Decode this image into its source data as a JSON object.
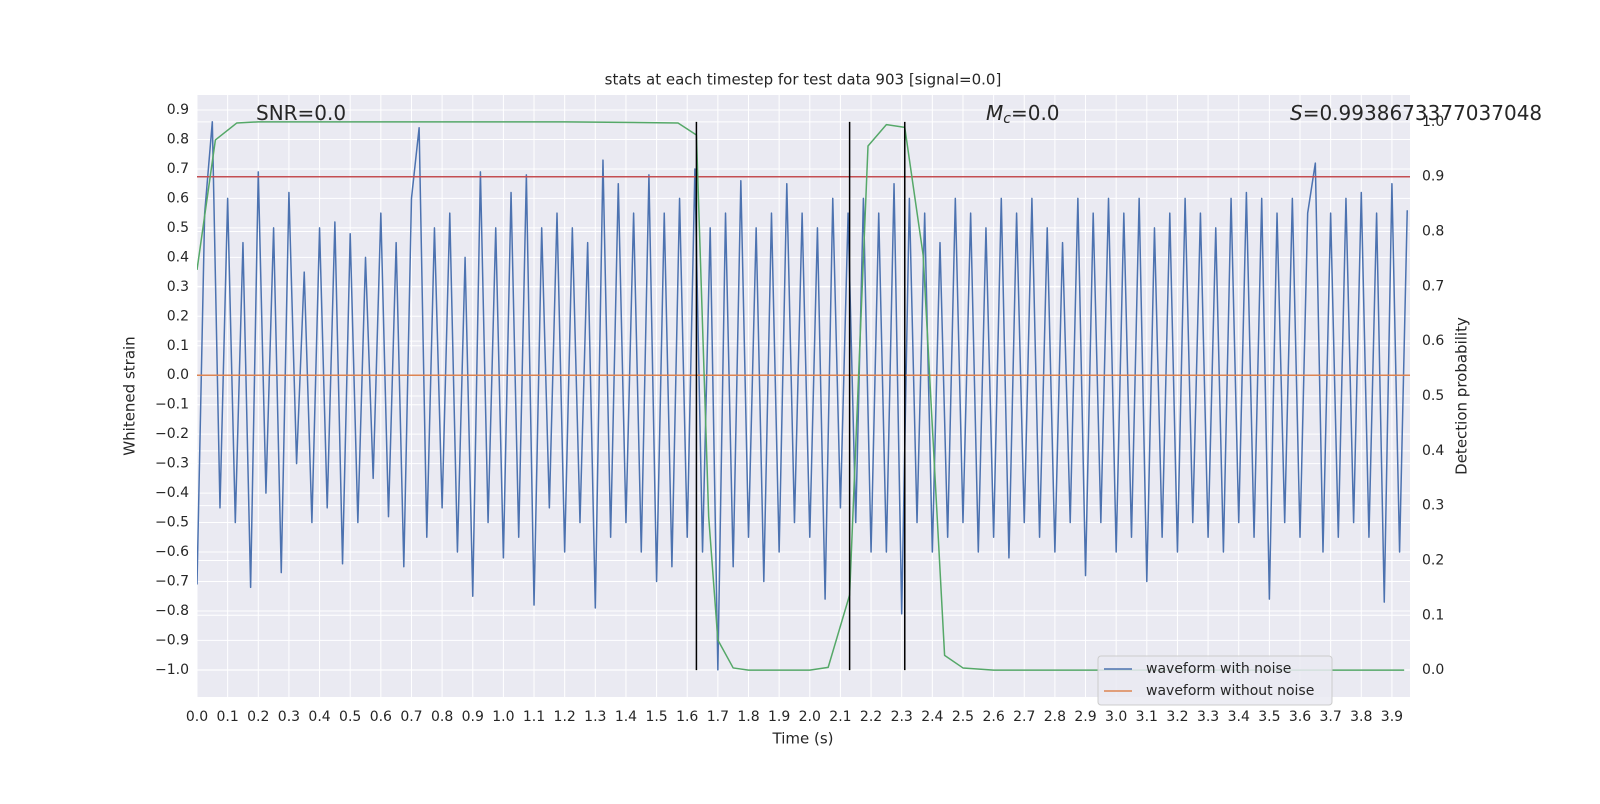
{
  "chart_data": {
    "type": "line",
    "title": "stats at each timestep for test data 903 [signal=0.0]",
    "xlabel": "Time (s)",
    "ylabel": "Whitened strain",
    "y2label": "Detection probability",
    "xlim": [
      0,
      3.959
    ],
    "ylim": [
      -1.092,
      0.951
    ],
    "y2lim": [
      -0.049,
      1.049
    ],
    "xticks": [
      {
        "value": 0,
        "label": "0.0"
      },
      0.1,
      0.2,
      0.3,
      0.4,
      0.5,
      0.6,
      0.7,
      0.8,
      0.9,
      {
        "value": 1,
        "label": "1.0"
      },
      1.1,
      1.2,
      1.3,
      1.4,
      1.5,
      1.6,
      1.7,
      1.8,
      1.9,
      {
        "value": 2,
        "label": "2.0"
      },
      2.1,
      2.2,
      2.3,
      2.4,
      2.5,
      2.6,
      2.7,
      2.8,
      2.9,
      {
        "value": 3,
        "label": "3.0"
      },
      3.1,
      3.2,
      3.3,
      3.4,
      3.5,
      3.6,
      3.7,
      3.8,
      3.9
    ],
    "yticks": [
      {
        "value": -1,
        "label": "−1.0"
      },
      {
        "value": -0.9,
        "label": "−0.9"
      },
      {
        "value": -0.8,
        "label": "−0.8"
      },
      {
        "value": -0.7,
        "label": "−0.7"
      },
      {
        "value": -0.6,
        "label": "−0.6"
      },
      {
        "value": -0.5,
        "label": "−0.5"
      },
      {
        "value": -0.4,
        "label": "−0.4"
      },
      {
        "value": -0.3,
        "label": "−0.3"
      },
      {
        "value": -0.2,
        "label": "−0.2"
      },
      {
        "value": -0.1,
        "label": "−0.1"
      },
      {
        "value": 0,
        "label": "0.0"
      },
      0.1,
      0.2,
      0.3,
      0.4,
      0.5,
      0.6,
      0.7,
      0.8,
      0.9
    ],
    "y2ticks": [
      {
        "value": 0,
        "label": "0.0"
      },
      0.1,
      0.2,
      0.3,
      0.4,
      0.5,
      0.6,
      0.7,
      0.8,
      0.9,
      {
        "value": 1,
        "label": "1.0"
      }
    ],
    "grid": true,
    "legend": "lower right",
    "series": [
      {
        "name": "waveform with noise",
        "color": "#4c72b0",
        "x": [
          0,
          0.025,
          0.05,
          0.075,
          0.1,
          0.125,
          0.15,
          0.175,
          0.2,
          0.225,
          0.25,
          0.275,
          0.3,
          0.325,
          0.35,
          0.375,
          0.4,
          0.425,
          0.45,
          0.475,
          0.5,
          0.525,
          0.55,
          0.575,
          0.6,
          0.625,
          0.65,
          0.675,
          0.7,
          0.725,
          0.75,
          0.775,
          0.8,
          0.825,
          0.85,
          0.875,
          0.9,
          0.925,
          0.95,
          0.975,
          1,
          1.025,
          1.05,
          1.075,
          1.1,
          1.125,
          1.15,
          1.175,
          1.2,
          1.225,
          1.25,
          1.275,
          1.3,
          1.325,
          1.35,
          1.375,
          1.4,
          1.425,
          1.45,
          1.475,
          1.5,
          1.525,
          1.55,
          1.575,
          1.6,
          1.625,
          1.65,
          1.675,
          1.7,
          1.725,
          1.75,
          1.775,
          1.8,
          1.825,
          1.85,
          1.875,
          1.9,
          1.925,
          1.95,
          1.975,
          2,
          2.025,
          2.05,
          2.075,
          2.1,
          2.125,
          2.15,
          2.175,
          2.2,
          2.225,
          2.25,
          2.275,
          2.3,
          2.325,
          2.35,
          2.375,
          2.4,
          2.425,
          2.45,
          2.475,
          2.5,
          2.525,
          2.55,
          2.575,
          2.6,
          2.625,
          2.65,
          2.675,
          2.7,
          2.725,
          2.75,
          2.775,
          2.8,
          2.825,
          2.85,
          2.875,
          2.9,
          2.925,
          2.95,
          2.975,
          3,
          3.025,
          3.05,
          3.075,
          3.1,
          3.125,
          3.15,
          3.175,
          3.2,
          3.225,
          3.25,
          3.275,
          3.3,
          3.325,
          3.35,
          3.375,
          3.4,
          3.425,
          3.45,
          3.475,
          3.5,
          3.525,
          3.55,
          3.575,
          3.6,
          3.625,
          3.65,
          3.675,
          3.7,
          3.725,
          3.75,
          3.775,
          3.8,
          3.825,
          3.85,
          3.875,
          3.9,
          3.925,
          3.95
        ],
        "values": [
          -0.71,
          0.55,
          0.86,
          -0.45,
          0.6,
          -0.5,
          0.45,
          -0.72,
          0.69,
          -0.4,
          0.5,
          -0.67,
          0.62,
          -0.3,
          0.35,
          -0.5,
          0.5,
          -0.45,
          0.52,
          -0.64,
          0.48,
          -0.5,
          0.4,
          -0.35,
          0.55,
          -0.48,
          0.45,
          -0.65,
          0.6,
          0.84,
          -0.55,
          0.5,
          -0.45,
          0.55,
          -0.6,
          0.4,
          -0.75,
          0.69,
          -0.5,
          0.5,
          -0.62,
          0.62,
          -0.55,
          0.68,
          -0.78,
          0.5,
          -0.45,
          0.55,
          -0.6,
          0.5,
          -0.5,
          0.45,
          -0.79,
          0.73,
          -0.55,
          0.65,
          -0.5,
          0.55,
          -0.6,
          0.68,
          -0.7,
          0.55,
          -0.65,
          0.6,
          -0.55,
          0.7,
          -0.6,
          0.5,
          -1.0,
          0.55,
          -0.65,
          0.66,
          -0.55,
          0.5,
          -0.7,
          0.55,
          -0.6,
          0.65,
          -0.5,
          0.55,
          -0.55,
          0.5,
          -0.76,
          0.6,
          -0.45,
          0.55,
          -0.5,
          0.6,
          -0.6,
          0.55,
          -0.6,
          0.65,
          -0.81,
          0.6,
          -0.5,
          0.55,
          -0.6,
          0.45,
          -0.55,
          0.6,
          -0.5,
          0.55,
          -0.6,
          0.5,
          -0.55,
          0.6,
          -0.62,
          0.55,
          -0.5,
          0.6,
          -0.55,
          0.5,
          -0.6,
          0.45,
          -0.5,
          0.6,
          -0.68,
          0.55,
          -0.5,
          0.6,
          -0.6,
          0.55,
          -0.55,
          0.6,
          -0.7,
          0.5,
          -0.55,
          0.55,
          -0.6,
          0.6,
          -0.5,
          0.55,
          -0.55,
          0.5,
          -0.6,
          0.6,
          -0.5,
          0.62,
          -0.55,
          0.6,
          -0.76,
          0.55,
          -0.5,
          0.6,
          -0.55,
          0.55,
          0.72,
          -0.6,
          0.55,
          -0.55,
          0.6,
          -0.5,
          0.62,
          -0.55,
          0.55,
          -0.77,
          0.65,
          -0.6,
          0.56
        ]
      },
      {
        "name": "waveform without noise",
        "color": "#dd8452",
        "x": [
          0,
          3.959
        ],
        "values": [
          0,
          0
        ]
      }
    ],
    "probability": {
      "color": "#55a868",
      "axis": "y2",
      "x": [
        0,
        0.06,
        0.13,
        0.2,
        0.4,
        0.8,
        1.2,
        1.57,
        1.63,
        1.67,
        1.7,
        1.75,
        1.8,
        2.0,
        2.06,
        2.13,
        2.19,
        2.25,
        2.31,
        2.37,
        2.44,
        2.5,
        2.6,
        3.0,
        3.5,
        3.94
      ],
      "values": [
        0.73,
        0.967,
        0.998,
        1.0,
        1.0,
        1.0,
        1.0,
        0.998,
        0.976,
        0.28,
        0.055,
        0.004,
        0.0,
        0.0,
        0.005,
        0.137,
        0.956,
        0.995,
        0.99,
        0.757,
        0.027,
        0.004,
        0.0,
        0.0,
        0.0,
        0.0
      ]
    },
    "threshold": {
      "value": 0.9,
      "color": "#c44e52",
      "axis": "y2"
    },
    "vlines": {
      "x": [
        1.63,
        2.13,
        2.31
      ],
      "ymin": 0,
      "ymax": 1,
      "axis": "y2",
      "color": "#000000"
    },
    "annotations": [
      {
        "text": "SNR=0.0"
      },
      {
        "symbol": "M",
        "subscript": "c",
        "text": "=0.0"
      },
      {
        "symbol": "S",
        "text": "=0.9938673377037048"
      }
    ]
  }
}
